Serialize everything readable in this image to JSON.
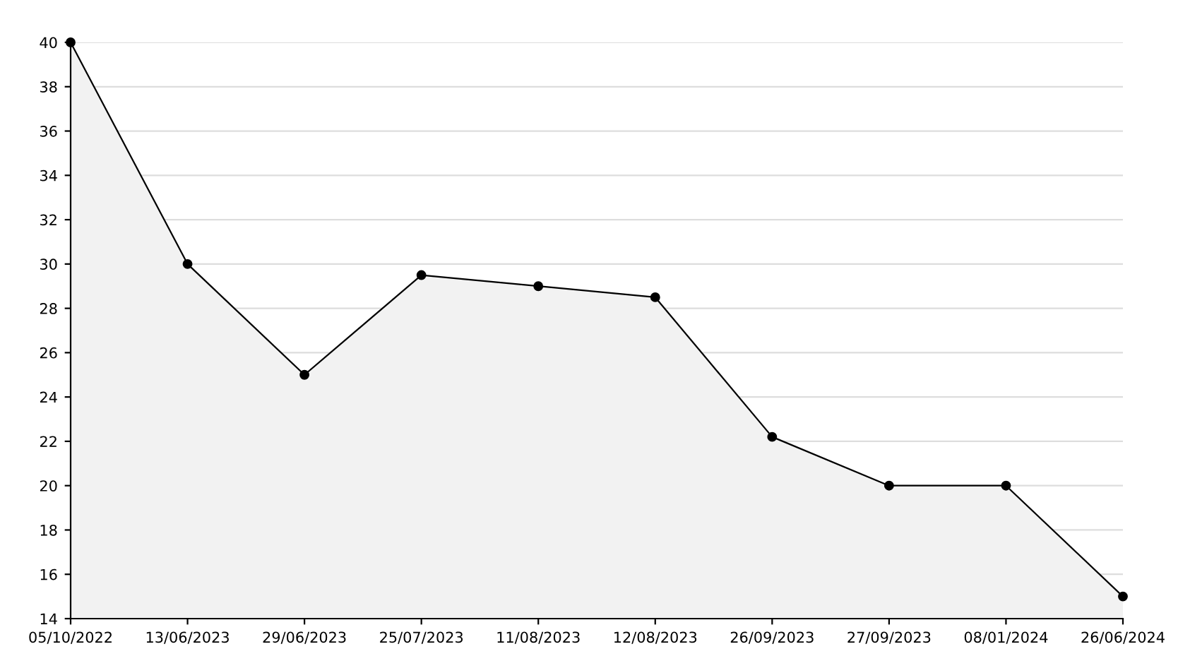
{
  "chart_data": {
    "type": "area",
    "categories": [
      "05/10/2022",
      "13/06/2023",
      "29/06/2023",
      "25/07/2023",
      "11/08/2023",
      "12/08/2023",
      "26/09/2023",
      "27/09/2023",
      "08/01/2024",
      "26/06/2024"
    ],
    "series": [
      {
        "color": "#000000",
        "values": [
          40,
          30,
          25,
          29.5,
          29,
          28.5,
          22.2,
          20,
          20,
          15
        ]
      }
    ],
    "ylim": [
      14,
      40
    ],
    "yticks": [
      14,
      16,
      18,
      20,
      22,
      24,
      26,
      28,
      30,
      32,
      34,
      36,
      38,
      40
    ],
    "grid": "y",
    "marker": "circle",
    "line_style": "solid"
  }
}
